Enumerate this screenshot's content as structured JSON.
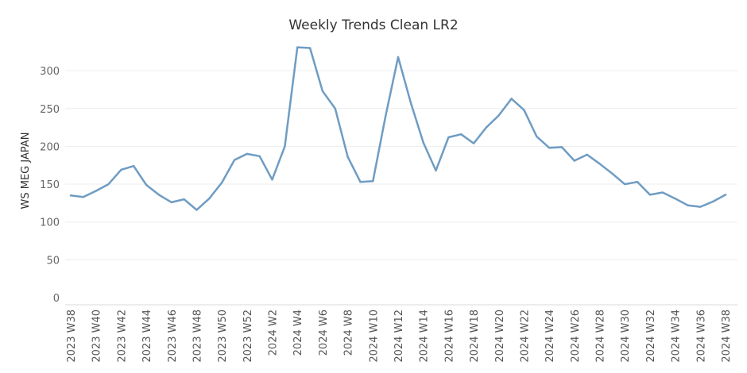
{
  "chart_data": {
    "type": "line",
    "title": "Weekly Trends Clean LR2",
    "xlabel": "",
    "ylabel": "WS MEG JAPAN",
    "ylim": [
      0,
      340
    ],
    "yticks": [
      0,
      50,
      100,
      150,
      200,
      250,
      300
    ],
    "grid": true,
    "legend": "none",
    "color": "#6f9cc3",
    "x": [
      "2023 W38",
      "2023 W39",
      "2023 W40",
      "2023 W41",
      "2023 W42",
      "2023 W43",
      "2023 W44",
      "2023 W45",
      "2023 W46",
      "2023 W47",
      "2023 W48",
      "2023 W49",
      "2023 W50",
      "2023 W51",
      "2023 W52",
      "2024 W1",
      "2024 W2",
      "2024 W3",
      "2024 W4",
      "2024 W5",
      "2024 W6",
      "2024 W7",
      "2024 W8",
      "2024 W9",
      "2024 W10",
      "2024 W11",
      "2024 W12",
      "2024 W13",
      "2024 W14",
      "2024 W15",
      "2024 W16",
      "2024 W17",
      "2024 W18",
      "2024 W19",
      "2024 W20",
      "2024 W21",
      "2024 W22",
      "2024 W23",
      "2024 W24",
      "2024 W25",
      "2024 W26",
      "2024 W27",
      "2024 W28",
      "2024 W29",
      "2024 W30",
      "2024 W31",
      "2024 W32",
      "2024 W33",
      "2024 W34",
      "2024 W35",
      "2024 W36",
      "2024 W37",
      "2024 W38"
    ],
    "tick_labels": [
      "2023 W38",
      "2023 W40",
      "2023 W42",
      "2023 W44",
      "2023 W46",
      "2023 W48",
      "2023 W50",
      "2023 W52",
      "2024 W2",
      "2024 W4",
      "2024 W6",
      "2024 W8",
      "2024 W10",
      "2024 W12",
      "2024 W14",
      "2024 W16",
      "2024 W18",
      "2024 W20",
      "2024 W22",
      "2024 W24",
      "2024 W26",
      "2024 W28",
      "2024 W30",
      "2024 W32",
      "2024 W34",
      "2024 W36",
      "2024 W38"
    ],
    "series": [
      {
        "values": [
          135,
          133,
          141,
          150,
          169,
          174,
          149,
          136,
          126,
          130,
          116,
          131,
          152,
          182,
          190,
          187,
          156,
          200,
          331,
          330,
          273,
          250,
          186,
          153,
          154,
          240,
          318,
          258,
          205,
          168,
          212,
          216,
          204,
          225,
          241,
          263,
          248,
          213,
          198,
          199,
          181,
          189,
          177,
          164,
          150,
          153,
          136,
          139,
          131,
          122,
          120,
          127,
          136
        ]
      }
    ]
  }
}
